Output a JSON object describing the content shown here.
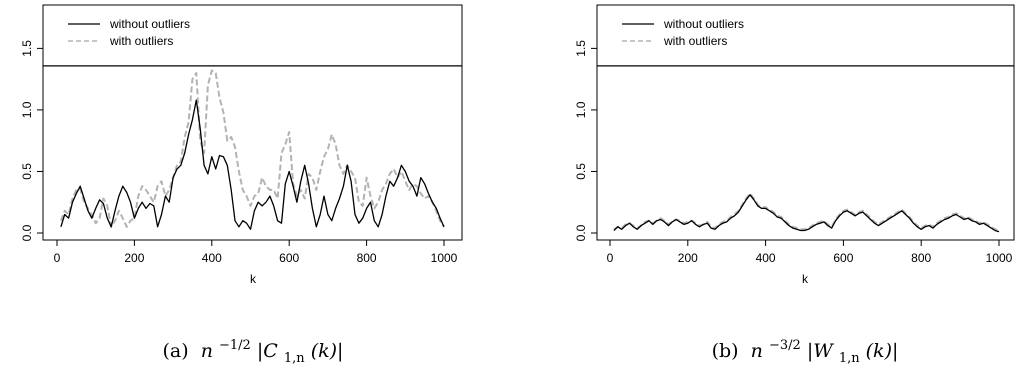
{
  "chart_data": [
    {
      "type": "line",
      "caption_letter": "(a)",
      "caption_math": {
        "base": "n",
        "exp": "−1/2",
        "body": "|C",
        "sub": "1,n",
        "arg": "(k)|"
      },
      "xlabel": "k",
      "ylabel": "",
      "xlim": [
        0,
        1000
      ],
      "ylim": [
        0,
        1.35
      ],
      "xticks": [
        0,
        200,
        400,
        600,
        800,
        1000
      ],
      "xtick_labels": [
        "0",
        "200",
        "400",
        "600",
        "800",
        "1000"
      ],
      "yticks": [
        0,
        0.5,
        1,
        1.5
      ],
      "ytick_labels": [
        "0.0",
        "0.5",
        "1.0",
        "1.5"
      ],
      "hline": 1.358,
      "legend_position": "top-left",
      "series": [
        {
          "name": "without outliers",
          "color": "#000000",
          "dash": "solid",
          "x": [
            10,
            20,
            30,
            40,
            50,
            60,
            70,
            80,
            90,
            100,
            110,
            120,
            130,
            140,
            150,
            160,
            170,
            180,
            190,
            200,
            210,
            220,
            230,
            240,
            250,
            260,
            270,
            280,
            290,
            300,
            310,
            320,
            330,
            340,
            350,
            360,
            370,
            380,
            390,
            400,
            410,
            420,
            430,
            440,
            450,
            460,
            470,
            480,
            490,
            500,
            510,
            520,
            530,
            540,
            550,
            560,
            570,
            580,
            590,
            600,
            610,
            620,
            630,
            640,
            650,
            660,
            670,
            680,
            690,
            700,
            710,
            720,
            730,
            740,
            750,
            760,
            770,
            780,
            790,
            800,
            810,
            820,
            830,
            840,
            850,
            860,
            870,
            880,
            890,
            900,
            910,
            920,
            930,
            940,
            950,
            960,
            970,
            980,
            990,
            1000
          ],
          "y": [
            0.05,
            0.15,
            0.12,
            0.25,
            0.32,
            0.38,
            0.28,
            0.18,
            0.12,
            0.2,
            0.27,
            0.24,
            0.12,
            0.05,
            0.18,
            0.3,
            0.38,
            0.33,
            0.25,
            0.12,
            0.2,
            0.25,
            0.2,
            0.24,
            0.22,
            0.05,
            0.15,
            0.3,
            0.25,
            0.45,
            0.52,
            0.55,
            0.65,
            0.8,
            0.92,
            1.08,
            0.85,
            0.55,
            0.48,
            0.62,
            0.52,
            0.63,
            0.62,
            0.55,
            0.35,
            0.1,
            0.05,
            0.1,
            0.08,
            0.03,
            0.18,
            0.25,
            0.22,
            0.25,
            0.3,
            0.22,
            0.1,
            0.08,
            0.4,
            0.5,
            0.38,
            0.25,
            0.42,
            0.55,
            0.4,
            0.2,
            0.05,
            0.15,
            0.3,
            0.15,
            0.1,
            0.2,
            0.28,
            0.38,
            0.55,
            0.42,
            0.15,
            0.08,
            0.12,
            0.2,
            0.25,
            0.1,
            0.05,
            0.15,
            0.3,
            0.42,
            0.38,
            0.45,
            0.55,
            0.5,
            0.42,
            0.38,
            0.3,
            0.45,
            0.4,
            0.32,
            0.25,
            0.2,
            0.12,
            0.05
          ]
        },
        {
          "name": "with outliers",
          "color": "#b3b3b3",
          "dash": "dashed",
          "x": [
            10,
            20,
            30,
            40,
            50,
            60,
            70,
            80,
            90,
            100,
            110,
            120,
            130,
            140,
            150,
            160,
            170,
            180,
            190,
            200,
            210,
            220,
            230,
            240,
            250,
            260,
            270,
            280,
            290,
            300,
            310,
            320,
            330,
            340,
            350,
            360,
            370,
            380,
            390,
            400,
            410,
            420,
            430,
            440,
            450,
            460,
            470,
            480,
            490,
            500,
            510,
            520,
            530,
            540,
            550,
            560,
            570,
            580,
            590,
            600,
            610,
            620,
            630,
            640,
            650,
            660,
            670,
            680,
            690,
            700,
            710,
            720,
            730,
            740,
            750,
            760,
            770,
            780,
            790,
            800,
            810,
            820,
            830,
            840,
            850,
            860,
            870,
            880,
            890,
            900,
            910,
            920,
            930,
            940,
            950,
            960,
            970,
            980,
            990,
            1000
          ],
          "y": [
            0.1,
            0.18,
            0.15,
            0.28,
            0.35,
            0.36,
            0.25,
            0.2,
            0.15,
            0.08,
            0.12,
            0.28,
            0.22,
            0.05,
            0.1,
            0.18,
            0.12,
            0.05,
            0.1,
            0.12,
            0.3,
            0.38,
            0.35,
            0.3,
            0.25,
            0.38,
            0.42,
            0.3,
            0.35,
            0.45,
            0.55,
            0.58,
            0.78,
            0.9,
            1.25,
            1.3,
            0.75,
            0.65,
            1.2,
            1.32,
            1.3,
            1.1,
            0.98,
            0.75,
            0.78,
            0.7,
            0.5,
            0.35,
            0.3,
            0.22,
            0.3,
            0.32,
            0.45,
            0.38,
            0.35,
            0.35,
            0.28,
            0.65,
            0.72,
            0.82,
            0.4,
            0.3,
            0.35,
            0.28,
            0.48,
            0.45,
            0.35,
            0.5,
            0.62,
            0.68,
            0.8,
            0.72,
            0.55,
            0.48,
            0.55,
            0.5,
            0.45,
            0.25,
            0.22,
            0.45,
            0.3,
            0.2,
            0.25,
            0.35,
            0.4,
            0.48,
            0.52,
            0.45,
            0.5,
            0.42,
            0.35,
            0.4,
            0.38,
            0.32,
            0.28,
            0.3,
            0.25,
            0.18,
            0.1,
            0.05
          ]
        }
      ]
    },
    {
      "type": "line",
      "caption_letter": "(b)",
      "caption_math": {
        "base": "n",
        "exp": "−3/2",
        "body": "|W",
        "sub": "1,n",
        "arg": "(k)|"
      },
      "xlabel": "k",
      "ylabel": "",
      "xlim": [
        0,
        1000
      ],
      "ylim": [
        0,
        1.35
      ],
      "xticks": [
        0,
        200,
        400,
        600,
        800,
        1000
      ],
      "xtick_labels": [
        "0",
        "200",
        "400",
        "600",
        "800",
        "1000"
      ],
      "yticks": [
        0,
        0.5,
        1,
        1.5
      ],
      "ytick_labels": [
        "0.0",
        "0.5",
        "1.0",
        "1.5"
      ],
      "hline": 1.358,
      "legend_position": "top-left",
      "series": [
        {
          "name": "without outliers",
          "color": "#000000",
          "dash": "solid",
          "x": [
            10,
            20,
            30,
            40,
            50,
            60,
            70,
            80,
            90,
            100,
            110,
            120,
            130,
            140,
            150,
            160,
            170,
            180,
            190,
            200,
            210,
            220,
            230,
            240,
            250,
            260,
            270,
            280,
            290,
            300,
            310,
            320,
            330,
            340,
            350,
            360,
            370,
            380,
            390,
            400,
            410,
            420,
            430,
            440,
            450,
            460,
            470,
            480,
            490,
            500,
            510,
            520,
            530,
            540,
            550,
            560,
            570,
            580,
            590,
            600,
            610,
            620,
            630,
            640,
            650,
            660,
            670,
            680,
            690,
            700,
            710,
            720,
            730,
            740,
            750,
            760,
            770,
            780,
            790,
            800,
            810,
            820,
            830,
            840,
            850,
            860,
            870,
            880,
            890,
            900,
            910,
            920,
            930,
            940,
            950,
            960,
            970,
            980,
            990,
            1000
          ],
          "y": [
            0.02,
            0.05,
            0.03,
            0.06,
            0.08,
            0.05,
            0.03,
            0.06,
            0.08,
            0.1,
            0.07,
            0.1,
            0.11,
            0.09,
            0.06,
            0.09,
            0.11,
            0.09,
            0.07,
            0.08,
            0.1,
            0.07,
            0.05,
            0.07,
            0.08,
            0.04,
            0.03,
            0.06,
            0.08,
            0.09,
            0.12,
            0.14,
            0.17,
            0.22,
            0.27,
            0.31,
            0.27,
            0.22,
            0.2,
            0.2,
            0.18,
            0.16,
            0.13,
            0.12,
            0.09,
            0.06,
            0.04,
            0.03,
            0.02,
            0.02,
            0.03,
            0.05,
            0.07,
            0.08,
            0.09,
            0.06,
            0.04,
            0.1,
            0.14,
            0.17,
            0.18,
            0.16,
            0.14,
            0.16,
            0.17,
            0.14,
            0.11,
            0.08,
            0.06,
            0.08,
            0.1,
            0.12,
            0.14,
            0.16,
            0.18,
            0.15,
            0.12,
            0.08,
            0.05,
            0.03,
            0.05,
            0.06,
            0.04,
            0.07,
            0.09,
            0.11,
            0.12,
            0.14,
            0.15,
            0.13,
            0.11,
            0.12,
            0.1,
            0.09,
            0.07,
            0.08,
            0.06,
            0.04,
            0.02,
            0.01
          ]
        },
        {
          "name": "with outliers",
          "color": "#b3b3b3",
          "dash": "dashed",
          "x": [
            10,
            20,
            30,
            40,
            50,
            60,
            70,
            80,
            90,
            100,
            110,
            120,
            130,
            140,
            150,
            160,
            170,
            180,
            190,
            200,
            210,
            220,
            230,
            240,
            250,
            260,
            270,
            280,
            290,
            300,
            310,
            320,
            330,
            340,
            350,
            360,
            370,
            380,
            390,
            400,
            410,
            420,
            430,
            440,
            450,
            460,
            470,
            480,
            490,
            500,
            510,
            520,
            530,
            540,
            550,
            560,
            570,
            580,
            590,
            600,
            610,
            620,
            630,
            640,
            650,
            660,
            670,
            680,
            690,
            700,
            710,
            720,
            730,
            740,
            750,
            760,
            770,
            780,
            790,
            800,
            810,
            820,
            830,
            840,
            850,
            860,
            870,
            880,
            890,
            900,
            910,
            920,
            930,
            940,
            950,
            960,
            970,
            980,
            990,
            1000
          ],
          "y": [
            0.03,
            0.05,
            0.04,
            0.07,
            0.08,
            0.06,
            0.04,
            0.06,
            0.09,
            0.1,
            0.08,
            0.1,
            0.12,
            0.1,
            0.07,
            0.09,
            0.11,
            0.1,
            0.08,
            0.09,
            0.1,
            0.08,
            0.06,
            0.07,
            0.09,
            0.05,
            0.04,
            0.07,
            0.09,
            0.1,
            0.13,
            0.15,
            0.18,
            0.23,
            0.28,
            0.32,
            0.28,
            0.23,
            0.21,
            0.21,
            0.19,
            0.17,
            0.14,
            0.13,
            0.1,
            0.07,
            0.05,
            0.04,
            0.03,
            0.03,
            0.04,
            0.06,
            0.08,
            0.09,
            0.1,
            0.07,
            0.05,
            0.11,
            0.15,
            0.18,
            0.19,
            0.17,
            0.15,
            0.17,
            0.18,
            0.15,
            0.12,
            0.09,
            0.07,
            0.09,
            0.11,
            0.13,
            0.15,
            0.17,
            0.19,
            0.16,
            0.13,
            0.09,
            0.06,
            0.04,
            0.06,
            0.07,
            0.05,
            0.08,
            0.1,
            0.12,
            0.13,
            0.15,
            0.16,
            0.14,
            0.12,
            0.13,
            0.11,
            0.1,
            0.08,
            0.09,
            0.07,
            0.05,
            0.03,
            0.02
          ]
        }
      ]
    }
  ]
}
